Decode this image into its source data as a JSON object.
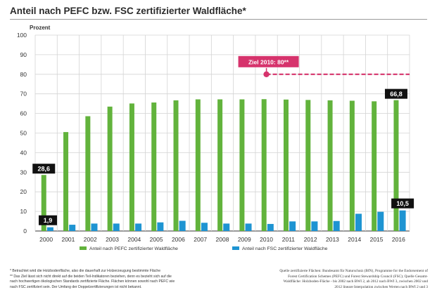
{
  "title": "Anteil nach PEFC bzw. FSC zertifizierter Waldfläche*",
  "chart_data": {
    "type": "bar",
    "ylabel": "Prozent",
    "ylim": [
      0,
      100
    ],
    "yticks": [
      0,
      10,
      20,
      30,
      40,
      50,
      60,
      70,
      80,
      90,
      100
    ],
    "grid": true,
    "categories": [
      "2000",
      "2001",
      "2002",
      "2003",
      "2004",
      "2005",
      "2006",
      "2007",
      "2008",
      "2009",
      "2010",
      "2011",
      "2012",
      "2013",
      "2014",
      "2015",
      "2016"
    ],
    "series": [
      {
        "name": "Anteil nach PEFC zertifizierter Waldfläche",
        "color": "#62b33c",
        "values": [
          28.6,
          50.5,
          58.6,
          63.5,
          65.1,
          65.6,
          66.7,
          67.2,
          67.2,
          67.2,
          67.3,
          67.1,
          66.9,
          66.7,
          66.5,
          66.2,
          66.8
        ]
      },
      {
        "name": "Anteil nach FSC zertifizierter Waldfläche",
        "color": "#1e94d2",
        "values": [
          1.9,
          3.2,
          3.8,
          3.8,
          3.8,
          4.4,
          5.2,
          4.2,
          3.8,
          3.8,
          3.6,
          4.9,
          4.9,
          5.1,
          8.8,
          9.8,
          10.5
        ]
      }
    ],
    "data_labels": [
      {
        "series": 0,
        "index": 0,
        "text": "28,6"
      },
      {
        "series": 1,
        "index": 0,
        "text": "1,9"
      },
      {
        "series": 0,
        "index": 16,
        "text": "66,8"
      },
      {
        "series": 1,
        "index": 16,
        "text": "10,5"
      }
    ],
    "target": {
      "label": "Ziel 2010: 80**",
      "value": 80,
      "from_index": 10,
      "color": "#d6336c"
    },
    "legend_position": "bottom"
  },
  "footnotes": [
    "* Betrachtet wird die Holzbodenfläche, also die dauerhaft zur Holzerzeugung bestimmte Fläche",
    "** Das Ziel lässt sich nicht direkt auf die beiden Teil-Indikatoren beziehen, denn es bezieht sich auf die",
    "nach hochwertigen ökologischen Standards zertifizierte Fläche. Flächen können sowohl nach PEFC wie",
    "nach FSC zertifiziert sein. Der Umfang der Doppelzertifizierungen ist nicht bekannt."
  ],
  "source": [
    "Quelle zertifizierte Flächen: Bundesamt für Naturschutz (BfN), Programme for the Endorsement of",
    "Forest Certification Schemes (PEFC) und Forest Stewardship Council (FSC); Quelle Gesamt-",
    "Waldfläche: Holzboden-Fläche - bis 2002 nach BWI 2, ab 2012 nach BWI 3, zwischen 2002 und",
    "2012 lineare Interpolation zwischen Werten nach BWI 2 und 3"
  ]
}
